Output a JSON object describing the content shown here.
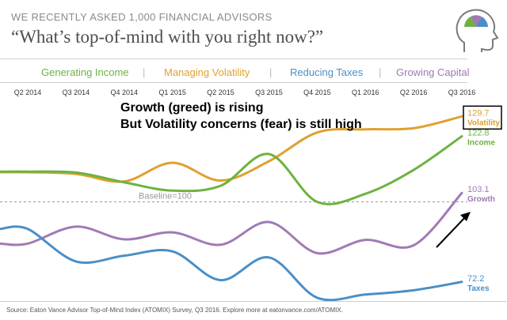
{
  "header": {
    "kicker": "WE RECENTLY ASKED 1,000 FINANCIAL ADVISORS",
    "headline": "“What’s top-of-mind with you right now?”"
  },
  "legend": {
    "items": [
      {
        "label": "Generating Income",
        "color": "#6cb33f"
      },
      {
        "label": "Managing Volatility",
        "color": "#e0a030"
      },
      {
        "label": "Reducing Taxes",
        "color": "#4a8fc7"
      },
      {
        "label": "Growing Capital",
        "color": "#a07ab5"
      }
    ],
    "separator": "|"
  },
  "annotations": {
    "line1": "Growth (greed) is rising",
    "line2": "But Volatility concerns (fear) is still high"
  },
  "source": "Source: Eaton Vance Advisor Top-of-Mind Index (ATOMIX) Survey, Q3 2016. Explore more at eatonvance.com/ATOMIX.",
  "chart_data": {
    "type": "line",
    "categories": [
      "Q2 2014",
      "Q3 2014",
      "Q4 2014",
      "Q1 2015",
      "Q2 2015",
      "Q3 2015",
      "Q4 2015",
      "Q1 2016",
      "Q2 2016",
      "Q3 2016"
    ],
    "baseline": {
      "label": "Baseline=100",
      "value": 100
    },
    "ylim": [
      65,
      135
    ],
    "series": [
      {
        "name": "Managing Volatility",
        "color": "#e0a030",
        "end_label": "Volatility",
        "end_value": "129.7",
        "boxed": true,
        "values": [
          110.3,
          109.7,
          107.1,
          113.6,
          107.4,
          114.1,
          124.1,
          125.2,
          125.6,
          129.7
        ]
      },
      {
        "name": "Generating Income",
        "color": "#6cb33f",
        "end_label": "Income",
        "end_value": "122.8",
        "values": [
          110.5,
          110.2,
          106.8,
          103.9,
          105.6,
          116.6,
          100.0,
          102.8,
          111.1,
          122.8
        ]
      },
      {
        "name": "Growing Capital",
        "color": "#a07ab5",
        "end_label": "Growth",
        "end_value": "103.1",
        "values": [
          85.5,
          91.4,
          87.0,
          89.4,
          85.1,
          93.0,
          82.2,
          86.8,
          84.9,
          103.1
        ]
      },
      {
        "name": "Reducing Taxes",
        "color": "#4a8fc7",
        "end_label": "Taxes",
        "end_value": "72.2",
        "values": [
          90.6,
          79.3,
          81.3,
          82.8,
          72.8,
          80.7,
          66.7,
          67.8,
          69.3,
          72.2
        ]
      }
    ]
  }
}
